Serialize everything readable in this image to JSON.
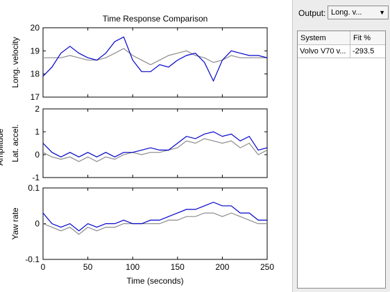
{
  "chart_data": {
    "type": "line",
    "title": "Time Response Comparison",
    "xlabel": "Time (seconds)",
    "ylabel": "Amplitude",
    "xlim": [
      0,
      250
    ],
    "xticks": [
      "0",
      "50",
      "100",
      "150",
      "200",
      "250"
    ],
    "grid": false,
    "series_colors": {
      "measured": "#8c8c8c",
      "simulated": "#0000c8"
    },
    "subplots": [
      {
        "ylabel": "Long. velocity",
        "ylim": [
          17,
          20
        ],
        "yticks": [
          "17",
          "18",
          "19",
          "20"
        ],
        "series": [
          {
            "x": [
              0,
              10,
              20,
              30,
              40,
              50,
              60,
              70,
              80,
              90,
              100,
              110,
              120,
              130,
              140,
              150,
              160,
              170,
              180,
              190,
              200,
              210,
              220,
              230,
              240,
              250
            ],
            "values": [
              18.7,
              18.7,
              18.7,
              18.8,
              18.7,
              18.6,
              18.6,
              18.7,
              18.9,
              19.1,
              18.8,
              18.6,
              18.4,
              18.6,
              18.8,
              18.9,
              19.0,
              18.8,
              18.7,
              18.5,
              18.6,
              18.8,
              18.7,
              18.7,
              18.7,
              18.7
            ]
          },
          {
            "x": [
              0,
              10,
              20,
              30,
              40,
              50,
              60,
              70,
              80,
              90,
              100,
              110,
              120,
              130,
              140,
              150,
              160,
              170,
              180,
              190,
              200,
              210,
              220,
              230,
              240,
              250
            ],
            "values": [
              17.9,
              18.3,
              18.9,
              19.2,
              18.9,
              18.7,
              18.6,
              18.9,
              19.4,
              19.6,
              18.6,
              18.1,
              18.1,
              18.4,
              18.3,
              18.6,
              18.8,
              18.9,
              18.5,
              17.7,
              18.6,
              19.0,
              18.9,
              18.8,
              18.8,
              18.7
            ]
          }
        ]
      },
      {
        "ylabel": "Lat. accel.",
        "ylim": [
          -1,
          2
        ],
        "yticks": [
          "-1",
          "0",
          "1",
          "2"
        ],
        "series": [
          {
            "x": [
              0,
              10,
              20,
              30,
              40,
              50,
              60,
              70,
              80,
              90,
              100,
              110,
              120,
              130,
              140,
              150,
              160,
              170,
              180,
              190,
              200,
              210,
              220,
              230,
              240,
              250
            ],
            "values": [
              0.1,
              -0.1,
              -0.2,
              -0.1,
              -0.3,
              -0.1,
              -0.3,
              -0.1,
              -0.2,
              0.0,
              0.1,
              0.0,
              0.1,
              0.1,
              0.2,
              0.3,
              0.6,
              0.5,
              0.7,
              0.6,
              0.5,
              0.6,
              0.3,
              0.5,
              0.0,
              0.2
            ]
          },
          {
            "x": [
              0,
              10,
              20,
              30,
              40,
              50,
              60,
              70,
              80,
              90,
              100,
              110,
              120,
              130,
              140,
              150,
              160,
              170,
              180,
              190,
              200,
              210,
              220,
              230,
              240,
              250
            ],
            "values": [
              0.5,
              0.1,
              -0.1,
              0.1,
              -0.1,
              0.1,
              -0.1,
              0.1,
              -0.1,
              0.1,
              0.1,
              0.2,
              0.3,
              0.2,
              0.2,
              0.5,
              0.8,
              0.7,
              0.9,
              1.0,
              0.8,
              0.9,
              0.6,
              0.8,
              0.2,
              0.3
            ]
          }
        ]
      },
      {
        "ylabel": "Yaw rate",
        "ylim": [
          -0.1,
          0.1
        ],
        "yticks": [
          "-0.1",
          "0",
          "0.1"
        ],
        "series": [
          {
            "x": [
              0,
              10,
              20,
              30,
              40,
              50,
              60,
              70,
              80,
              90,
              100,
              110,
              120,
              130,
              140,
              150,
              160,
              170,
              180,
              190,
              200,
              210,
              220,
              230,
              240,
              250
            ],
            "values": [
              0.0,
              -0.01,
              -0.02,
              -0.01,
              -0.03,
              -0.01,
              -0.02,
              -0.01,
              -0.01,
              0.0,
              0.0,
              0.0,
              0.0,
              0.0,
              0.01,
              0.01,
              0.02,
              0.02,
              0.03,
              0.03,
              0.02,
              0.03,
              0.02,
              0.01,
              0.0,
              0.0
            ]
          },
          {
            "x": [
              0,
              10,
              20,
              30,
              40,
              50,
              60,
              70,
              80,
              90,
              100,
              110,
              120,
              130,
              140,
              150,
              160,
              170,
              180,
              190,
              200,
              210,
              220,
              230,
              240,
              250
            ],
            "values": [
              0.03,
              0.0,
              -0.01,
              0.0,
              -0.02,
              0.0,
              -0.01,
              0.0,
              0.0,
              0.01,
              0.0,
              0.0,
              0.01,
              0.01,
              0.02,
              0.03,
              0.04,
              0.04,
              0.05,
              0.06,
              0.05,
              0.05,
              0.03,
              0.03,
              0.01,
              0.01
            ]
          }
        ]
      }
    ]
  },
  "panel": {
    "output_label": "Output:",
    "output_selected": "Long. v...",
    "columns": [
      "System",
      "Fit %"
    ],
    "rows": [
      {
        "system": "Volvo V70 v...",
        "fit": "-293.5"
      }
    ]
  }
}
